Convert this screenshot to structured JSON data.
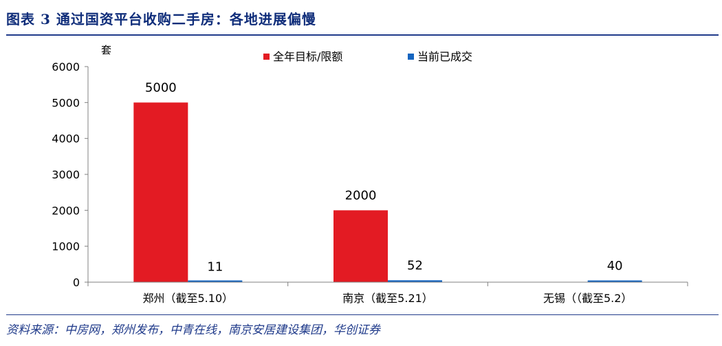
{
  "figure": {
    "title": "图表 3   通过国资平台收购二手房：各地进展偏慢",
    "source": "资料来源：中房网，郑州发布，中青在线，南京安居建设集团，华创证券"
  },
  "chart_data": {
    "type": "bar",
    "title": "",
    "xlabel": "",
    "ylabel": "套",
    "ylim": [
      0,
      6000
    ],
    "yticks": [
      0,
      1000,
      2000,
      3000,
      4000,
      5000,
      6000
    ],
    "grid": false,
    "legend_position": "top",
    "categories": [
      "郑州（截至5.10）",
      "南京（截至5.21）",
      "无锡（（截至5.2）"
    ],
    "series": [
      {
        "name": "全年目标/限额",
        "color": "#E31B23",
        "values": [
          5000,
          2000,
          null
        ],
        "labels": [
          "5000",
          "2000",
          ""
        ]
      },
      {
        "name": "当前已成交",
        "color": "#1565C0",
        "values": [
          11,
          52,
          40
        ],
        "labels": [
          "11",
          "52",
          "40"
        ]
      }
    ]
  }
}
